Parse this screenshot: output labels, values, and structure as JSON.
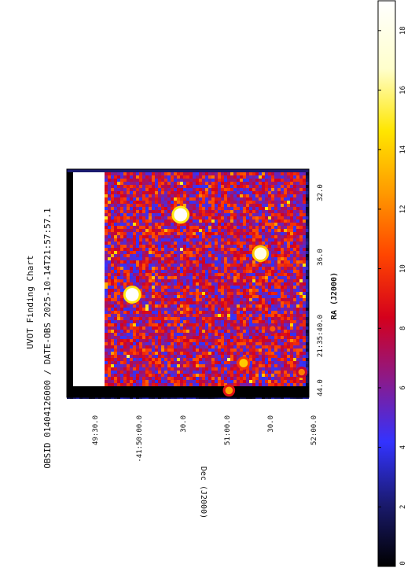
{
  "chart_data": {
    "type": "heatmap",
    "title_line1": "UVOT Finding Chart",
    "title_line2": "OBSID 01404126000 / DATE-OBS 2025-10-14T21:57:57.1",
    "xlabel": "RA (J2000)",
    "ylabel": "Dec (J2000)",
    "ra_ticks": [
      "44.0",
      "21:35:40.0",
      "36.0",
      "32.0"
    ],
    "dec_ticks": [
      "49:30.0",
      "-41:50:00.0",
      "30.0",
      "51:00.0",
      "30.0",
      "52:00.0"
    ],
    "colorbar": {
      "ticks": [
        "0",
        "2",
        "4",
        "6",
        "8",
        "10",
        "12",
        "14",
        "16",
        "18"
      ],
      "range": [
        0,
        19
      ],
      "colormap": [
        "#000000",
        "#1a1a6e",
        "#3333ff",
        "#8b1a8b",
        "#d4001c",
        "#ff4500",
        "#ff9900",
        "#ffe600",
        "#ffffcc",
        "#ffffff"
      ]
    },
    "sources": [
      {
        "ra_frac": 0.55,
        "dec_frac": 0.27,
        "value": 19
      },
      {
        "ra_frac": 0.2,
        "dec_frac": 0.47,
        "value": 19
      },
      {
        "ra_frac": 0.37,
        "dec_frac": 0.8,
        "value": 18
      },
      {
        "ra_frac": 0.85,
        "dec_frac": 0.73,
        "value": 14
      },
      {
        "ra_frac": 0.97,
        "dec_frac": 0.67,
        "value": 13
      },
      {
        "ra_frac": 0.89,
        "dec_frac": 0.97,
        "value": 12
      },
      {
        "ra_frac": 0.7,
        "dec_frac": 0.85,
        "value": 11
      }
    ],
    "grid": false,
    "legend": "right"
  }
}
